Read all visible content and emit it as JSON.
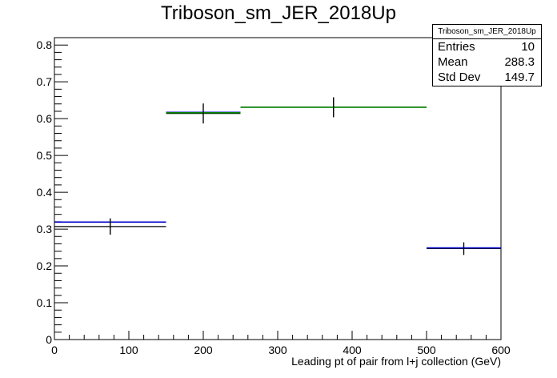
{
  "title": "Triboson_sm_JER_2018Up",
  "stats_box": {
    "title": "Triboson_sm_JER_2018Up",
    "rows": [
      {
        "label": "Entries",
        "value": "10"
      },
      {
        "label": "Mean",
        "value": "288.3"
      },
      {
        "label": "Std Dev",
        "value": "149.7"
      }
    ]
  },
  "colors": {
    "black": "#000000",
    "blue": "#0000cc",
    "green": "#008000",
    "navy": "#000080"
  },
  "chart_data": {
    "type": "histogram",
    "xlabel": "Leading pt of pair from l+j collection (GeV)",
    "ylabel": "",
    "xlim": [
      0,
      600
    ],
    "ylim": [
      0,
      0.82
    ],
    "x_ticks": [
      0,
      100,
      200,
      300,
      400,
      500,
      600
    ],
    "x_tick_labels": [
      "0",
      "100",
      "200",
      "300",
      "400",
      "500",
      "600"
    ],
    "y_ticks": [
      0,
      0.1,
      0.2,
      0.3,
      0.4,
      0.5,
      0.6,
      0.7,
      0.8
    ],
    "y_tick_labels": [
      "0",
      "0.1",
      "0.2",
      "0.3",
      "0.4",
      "0.5",
      "0.6",
      "0.7",
      "0.8"
    ],
    "grid": false,
    "series": [
      {
        "style": "errorbar",
        "color": "#000000",
        "bins": [
          {
            "x_low": 0,
            "x_high": 150,
            "y": 0.307,
            "err": 0.022
          },
          {
            "x_low": 150,
            "x_high": 250,
            "y": 0.614,
            "err": 0.027
          },
          {
            "x_low": 250,
            "x_high": 500,
            "y": 0.631,
            "err": 0.027
          },
          {
            "x_low": 500,
            "x_high": 600,
            "y": 0.247,
            "err": 0.017
          }
        ]
      },
      {
        "style": "step",
        "color": "#0000cc",
        "bins": [
          {
            "x_low": 0,
            "x_high": 150,
            "y": 0.319
          },
          {
            "x_low": 150,
            "x_high": 250,
            "y": 0.617
          },
          {
            "x_low": 500,
            "x_high": 600,
            "y": 0.249
          }
        ]
      },
      {
        "style": "step",
        "color": "#008000",
        "bins": [
          {
            "x_low": 150,
            "x_high": 250,
            "y": 0.616
          },
          {
            "x_low": 250,
            "x_high": 500,
            "y": 0.631
          }
        ]
      }
    ]
  }
}
